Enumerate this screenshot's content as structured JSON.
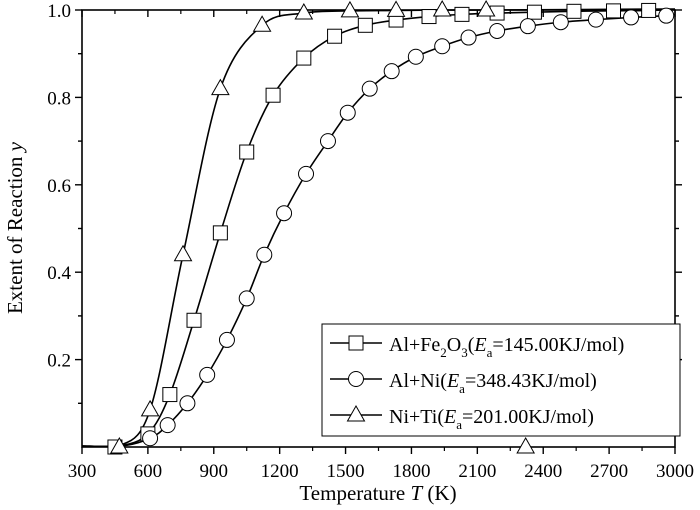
{
  "chart_data": {
    "type": "line",
    "title": "",
    "xlabel": "Temperature T (K)",
    "ylabel": "Extent of Reaction y",
    "xlabel_parts": {
      "pre": "Temperature ",
      "italic": "T",
      "post": " (K)"
    },
    "ylabel_parts": {
      "pre": "Extent of Reaction ",
      "italic": "y"
    },
    "xlim": [
      300,
      3000
    ],
    "ylim": [
      0,
      1.0
    ],
    "x_ticks": [
      300,
      600,
      900,
      1200,
      1500,
      1800,
      2100,
      2400,
      2700,
      3000
    ],
    "x_tick_labels": [
      "300",
      "600",
      "900",
      "1200",
      "1500",
      "1800",
      "2100",
      "2400",
      "2700",
      "3000"
    ],
    "y_ticks": [
      0.2,
      0.4,
      0.6,
      0.8,
      1.0
    ],
    "y_tick_labels": [
      "0.2",
      "0.4",
      "0.6",
      "0.8",
      "1.0"
    ],
    "grid": false,
    "legend_position": "lower right",
    "series": [
      {
        "name": "Al+Fe2O3(Ea=145.00KJ/mol)",
        "legend": {
          "pre": "Al+Fe",
          "sub1": "2",
          "mid": "O",
          "sub2": "3",
          "open": "(",
          "E": "E",
          "sub_a": "a",
          "post": "=145.00KJ/mol)"
        },
        "marker": "square",
        "x": [
          450,
          600,
          700,
          810,
          930,
          1050,
          1170,
          1310,
          1450,
          1590,
          1730,
          1880,
          2030,
          2190,
          2360,
          2540,
          2720,
          2880
        ],
        "y": [
          0.0,
          0.03,
          0.12,
          0.29,
          0.49,
          0.675,
          0.805,
          0.89,
          0.94,
          0.965,
          0.977,
          0.985,
          0.99,
          0.993,
          0.995,
          0.997,
          0.998,
          0.999
        ]
      },
      {
        "name": "Al+Ni(Ea=348.43KJ/mol)",
        "legend": {
          "pre": "Al+Ni",
          "open": "(",
          "E": "E",
          "sub_a": "a",
          "post": "=348.43KJ/mol)"
        },
        "marker": "circle",
        "x": [
          610,
          690,
          780,
          870,
          960,
          1050,
          1130,
          1220,
          1320,
          1420,
          1510,
          1610,
          1710,
          1820,
          1940,
          2060,
          2190,
          2330,
          2480,
          2640,
          2800,
          2960
        ],
        "y": [
          0.02,
          0.05,
          0.1,
          0.165,
          0.245,
          0.34,
          0.44,
          0.535,
          0.625,
          0.7,
          0.765,
          0.82,
          0.86,
          0.893,
          0.917,
          0.937,
          0.952,
          0.963,
          0.972,
          0.978,
          0.983,
          0.987
        ]
      },
      {
        "name": "Ni+Ti(Ea=201.00KJ/mol)",
        "legend": {
          "pre": "Ni+Ti",
          "open": "(",
          "E": "E",
          "sub_a": "a",
          "post": "=201.00KJ/mol)"
        },
        "marker": "triangle",
        "x": [
          470,
          610,
          760,
          930,
          1120,
          1310,
          1520,
          1730,
          1940,
          2140,
          2320
        ],
        "y": [
          0.0,
          0.085,
          0.44,
          0.82,
          0.965,
          0.993,
          0.998,
          0.999,
          1.0,
          1.0,
          0.0
        ]
      }
    ],
    "curve_note": "Ni+Ti marker at 2320 K rests on the x-axis baseline; curves start near 0 around 500 K"
  }
}
